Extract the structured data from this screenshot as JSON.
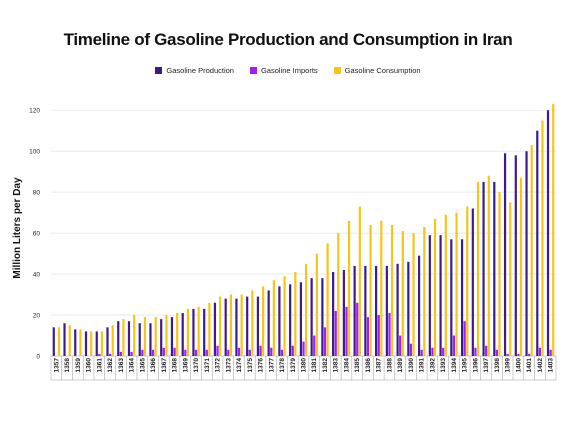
{
  "chart_data": {
    "type": "bar",
    "title": "Timeline of Gasoline Production and Consumption in Iran",
    "ylabel": "Million Liters per Day",
    "xlabel": "",
    "ylim": [
      0,
      125
    ],
    "yticks": [
      0,
      20,
      40,
      60,
      80,
      100,
      120
    ],
    "grid": true,
    "legend_position": "top-center",
    "categories": [
      "1357",
      "1358",
      "1359",
      "1360",
      "1361",
      "1362",
      "1363",
      "1364",
      "1365",
      "1366",
      "1367",
      "1368",
      "1369",
      "1370",
      "1371",
      "1372",
      "1373",
      "1374",
      "1375",
      "1376",
      "1377",
      "1378",
      "1379",
      "1380",
      "1381",
      "1382",
      "1383",
      "1384",
      "1385",
      "1386",
      "1387",
      "1388",
      "1389",
      "1390",
      "1391",
      "1392",
      "1393",
      "1394",
      "1395",
      "1396",
      "1397",
      "1398",
      "1399",
      "1400",
      "1401",
      "1402",
      "1403"
    ],
    "series": [
      {
        "name": "Gasoline Production",
        "color": "#3d1a8f",
        "values": [
          14,
          16,
          13,
          12,
          12,
          14,
          17,
          17,
          16,
          16,
          18,
          19,
          21,
          23,
          23,
          26,
          28,
          28,
          29,
          29,
          32,
          34,
          35,
          36,
          38,
          38,
          41,
          42,
          44,
          44,
          44,
          44,
          45,
          46,
          49,
          59,
          59,
          57,
          57,
          72,
          85,
          85,
          99,
          98,
          100,
          110,
          120
        ]
      },
      {
        "name": "Gasoline Imports",
        "color": "#a020f0",
        "values": [
          0,
          0,
          0,
          0,
          1,
          1,
          2,
          2,
          3,
          3,
          4,
          4,
          3,
          3,
          3,
          5,
          3,
          4,
          3,
          5,
          4,
          3,
          5,
          7,
          10,
          14,
          22,
          24,
          26,
          19,
          20,
          21,
          10,
          6,
          3,
          4,
          4,
          10,
          17,
          4,
          5,
          3,
          1,
          1,
          1,
          4,
          3
        ]
      },
      {
        "name": "Gasoline Consumption",
        "color": "#f5c518",
        "values": [
          14,
          15,
          13,
          12,
          12,
          15,
          18,
          20,
          19,
          19,
          20,
          21,
          23,
          24,
          26,
          29,
          30,
          30,
          32,
          34,
          37,
          39,
          41,
          45,
          50,
          55,
          60,
          66,
          73,
          64,
          66,
          64,
          61,
          60,
          63,
          67,
          69,
          70,
          73,
          85,
          88,
          80,
          75,
          87,
          103,
          115,
          123
        ]
      }
    ]
  }
}
